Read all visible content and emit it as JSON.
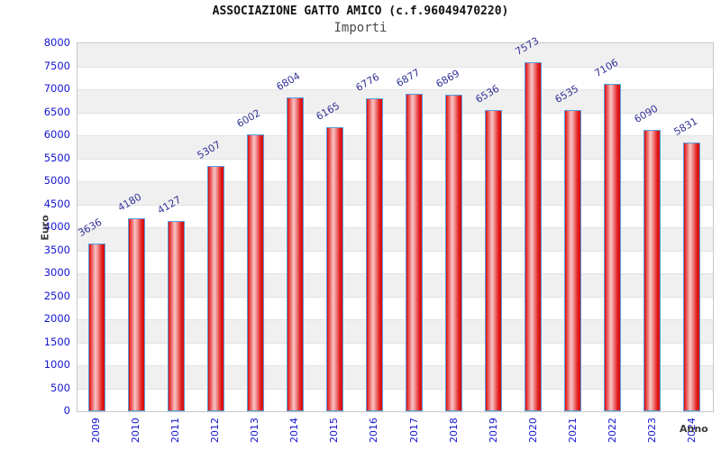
{
  "header": {
    "title": "ASSOCIAZIONE GATTO AMICO (c.f.96049470220)",
    "subtitle": "Importi"
  },
  "chart_data": {
    "type": "bar",
    "title": "ASSOCIAZIONE GATTO AMICO (c.f.96049470220)",
    "subtitle": "Importi",
    "xlabel": "Anno",
    "ylabel": "Euro",
    "categories": [
      "2009",
      "2010",
      "2011",
      "2012",
      "2013",
      "2014",
      "2015",
      "2016",
      "2017",
      "2018",
      "2019",
      "2020",
      "2021",
      "2022",
      "2023",
      "2024"
    ],
    "values": [
      3636,
      4180,
      4127,
      5307,
      6002,
      6804,
      6165,
      6776,
      6877,
      6869,
      6536,
      7573,
      6535,
      7106,
      6090,
      5831
    ],
    "ylim": [
      0,
      8000
    ],
    "ytick_step": 500,
    "yticks": [
      0,
      500,
      1000,
      1500,
      2000,
      2500,
      3000,
      3500,
      4000,
      4500,
      5000,
      5500,
      6000,
      6500,
      7000,
      7500,
      8000
    ],
    "grid": "alternating horizontal bands, gray line each 500",
    "legend": "none",
    "value_labels": "above each bar, rotated -30deg",
    "x_tick_rotation": -90,
    "colors": {
      "bar_fill_edge": "#d90d0d",
      "bar_fill_highlight": "#f8c6c6",
      "bar_border": "#55a0dd",
      "tick_label": "#1515cf",
      "value_label": "#333399",
      "band_gray": "#f0f0f0",
      "band_white": "#ffffff",
      "plot_border": "#c8c8c8",
      "grid_line": "#e2e2e2",
      "title_color": "#111111",
      "subtitle_color": "#4a4a4a",
      "axis_title_color": "#3a3a3a"
    }
  }
}
